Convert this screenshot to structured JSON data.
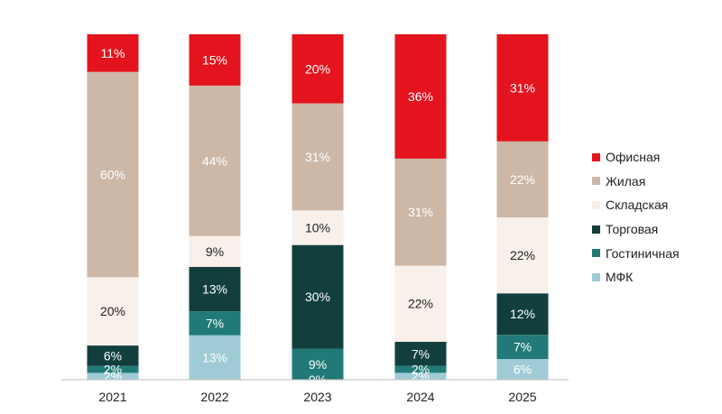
{
  "chart_data": {
    "type": "bar",
    "stacked": true,
    "percent": true,
    "categories": [
      "2021",
      "2022",
      "2023",
      "2024",
      "2025"
    ],
    "series": [
      {
        "name": "МФК",
        "color": "#9fcbd6",
        "labels": [
          "2%",
          "13%",
          "",
          "2%",
          "6%"
        ],
        "values": [
          2,
          13,
          0,
          2,
          6
        ]
      },
      {
        "name": "Гостиничная",
        "color": "#217a78",
        "labels": [
          "2%",
          "7%",
          "9%",
          "2%",
          "7%"
        ],
        "values": [
          2,
          7,
          9,
          2,
          7
        ]
      },
      {
        "name": "Торговая",
        "color": "#123f3d",
        "labels": [
          "6%",
          "13%",
          "30%",
          "7%",
          "12%"
        ],
        "values": [
          6,
          13,
          30,
          7,
          12
        ]
      },
      {
        "name": "Складская",
        "color": "#f8f0ea",
        "labels": [
          "20%",
          "9%",
          "10%",
          "22%",
          "22%"
        ],
        "values": [
          20,
          9,
          10,
          22,
          22
        ]
      },
      {
        "name": "Жилая",
        "color": "#cdb7a7",
        "labels": [
          "60%",
          "44%",
          "31%",
          "31%",
          "22%"
        ],
        "values": [
          60,
          44,
          31,
          31,
          22
        ]
      },
      {
        "name": "Офисная",
        "color": "#e3141d",
        "labels": [
          "11%",
          "15%",
          "20%",
          "36%",
          "31%"
        ],
        "values": [
          11,
          15,
          20,
          36,
          31
        ]
      }
    ],
    "extra_labels": [
      {
        "category": "2023",
        "text": "0%"
      }
    ],
    "legend": {
      "position": "right",
      "order": [
        "Офисная",
        "Жилая",
        "Складская",
        "Торговая",
        "Гостиничная",
        "МФК"
      ]
    },
    "title": "",
    "xlabel": "",
    "ylabel": "",
    "ylim": [
      0,
      100
    ]
  }
}
